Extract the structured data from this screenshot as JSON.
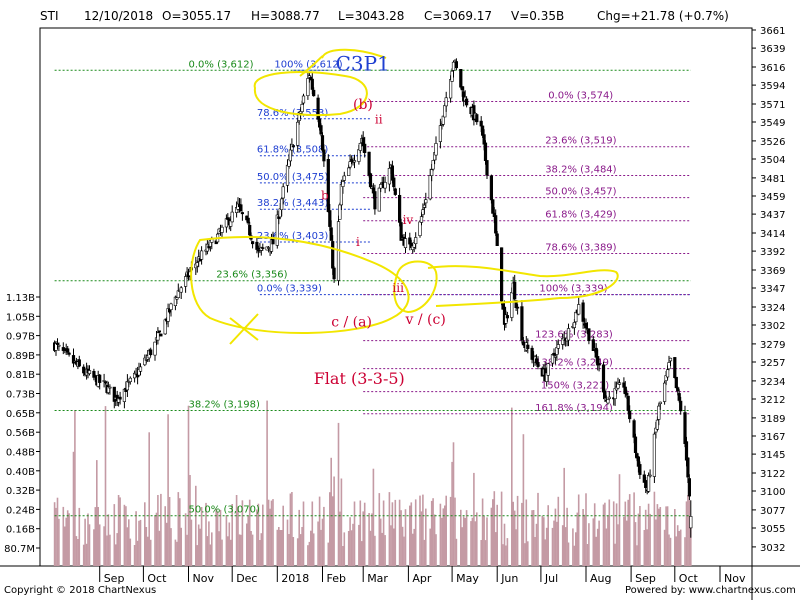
{
  "header": {
    "symbol": "STI",
    "date": "12/10/2018",
    "open": "O=3055.17",
    "high": "H=3088.77",
    "low": "L=3043.28",
    "close": "C=3069.17",
    "volume": "V=0.35B",
    "change": "Chg=+21.78 (+0.7%)"
  },
  "footer": {
    "copyright": "Copyright © 2018 ChartNexus",
    "powered": "Powered by: www.chartnexus.com"
  },
  "colors": {
    "up": "#ffffff",
    "down": "#000000",
    "volume": "#c49aa4",
    "level_green": "#1a8a1a",
    "level_blue": "#1f3fd1",
    "level_purple": "#8a1a8a",
    "annotation_red": "#cc0033",
    "highlight_yellow": "#f2e600",
    "axis_tick": "#000000"
  },
  "chart_data": {
    "type": "candlestick",
    "title": "",
    "y_price_range": [
      3010,
      3661
    ],
    "y_price_ticks": [
      "3661",
      "3639",
      "3616",
      "3594",
      "3571",
      "3549",
      "3526",
      "3504",
      "3481",
      "3459",
      "3437",
      "3414",
      "3392",
      "3369",
      "3347",
      "3324",
      "3302",
      "3279",
      "3257",
      "3234",
      "3212",
      "3189",
      "3167",
      "3145",
      "3122",
      "3100",
      "3077",
      "3055",
      "3032"
    ],
    "y_volume_ticks": [
      "1.13B",
      "1.05B",
      "0.97B",
      "0.89B",
      "0.81B",
      "0.73B",
      "0.65B",
      "0.56B",
      "0.48B",
      "0.40B",
      "0.32B",
      "0.24B",
      "0.16B",
      "80.7M"
    ],
    "x_month_labels": [
      "Sep",
      "Oct",
      "Nov",
      "Dec",
      "2018",
      "Feb",
      "Mar",
      "Apr",
      "May",
      "Jun",
      "Jul",
      "Aug",
      "Sep",
      "Oct",
      "Nov"
    ],
    "price_anchors": [
      [
        "2017-08-01",
        3278
      ],
      [
        "2017-08-21",
        3245
      ],
      [
        "2017-09-05",
        3228
      ],
      [
        "2017-09-12",
        3212
      ],
      [
        "2017-09-26",
        3240
      ],
      [
        "2017-10-10",
        3282
      ],
      [
        "2017-10-24",
        3340
      ],
      [
        "2017-11-07",
        3380
      ],
      [
        "2017-11-21",
        3410
      ],
      [
        "2017-12-05",
        3445
      ],
      [
        "2017-12-12",
        3420
      ],
      [
        "2017-12-19",
        3390
      ],
      [
        "2017-12-29",
        3402
      ],
      [
        "2018-01-10",
        3510
      ],
      [
        "2018-01-23",
        3608
      ],
      [
        "2018-01-31",
        3540
      ],
      [
        "2018-02-06",
        3420
      ],
      [
        "2018-02-09",
        3355
      ],
      [
        "2018-02-14",
        3470
      ],
      [
        "2018-02-28",
        3530
      ],
      [
        "2018-03-09",
        3450
      ],
      [
        "2018-03-20",
        3495
      ],
      [
        "2018-03-27",
        3410
      ],
      [
        "2018-04-02",
        3395
      ],
      [
        "2018-04-09",
        3425
      ],
      [
        "2018-04-19",
        3508
      ],
      [
        "2018-05-02",
        3625
      ],
      [
        "2018-05-09",
        3580
      ],
      [
        "2018-05-21",
        3540
      ],
      [
        "2018-05-30",
        3430
      ],
      [
        "2018-06-06",
        3300
      ],
      [
        "2018-06-12",
        3350
      ],
      [
        "2018-06-19",
        3280
      ],
      [
        "2018-06-27",
        3258
      ],
      [
        "2018-07-04",
        3240
      ],
      [
        "2018-07-11",
        3270
      ],
      [
        "2018-07-19",
        3290
      ],
      [
        "2018-07-27",
        3325
      ],
      [
        "2018-08-03",
        3290
      ],
      [
        "2018-08-10",
        3250
      ],
      [
        "2018-08-15",
        3210
      ],
      [
        "2018-08-27",
        3230
      ],
      [
        "2018-09-06",
        3130
      ],
      [
        "2018-09-12",
        3100
      ],
      [
        "2018-09-20",
        3200
      ],
      [
        "2018-09-28",
        3258
      ],
      [
        "2018-10-05",
        3200
      ],
      [
        "2018-10-10",
        3122
      ],
      [
        "2018-10-12",
        3069
      ]
    ],
    "levels": [
      {
        "label": "0.0%  (3,612)",
        "value": 3612,
        "color": "green",
        "x_start": "2017-08-01",
        "x_end": "2018-10-12",
        "label_at": "2017-11-01"
      },
      {
        "label": "100%  (3,612)",
        "value": 3612,
        "color": "blue",
        "x_start": "2018-01-12",
        "x_end": "2018-02-06",
        "label_at": "2017-12-30"
      },
      {
        "label": "78.6%  (3,553)",
        "value": 3553,
        "color": "blue",
        "x_start": "2017-12-20",
        "x_end": "2018-03-06",
        "label_at": "2017-12-18"
      },
      {
        "label": "61.8%  (3,508)",
        "value": 3508,
        "color": "blue",
        "x_start": "2017-12-20",
        "x_end": "2018-03-06",
        "label_at": "2017-12-18"
      },
      {
        "label": "50.0%  (3,475)",
        "value": 3475,
        "color": "blue",
        "x_start": "2017-12-20",
        "x_end": "2018-03-06",
        "label_at": "2017-12-18"
      },
      {
        "label": "38.2%  (3,443)",
        "value": 3443,
        "color": "blue",
        "x_start": "2017-12-20",
        "x_end": "2018-03-06",
        "label_at": "2017-12-18"
      },
      {
        "label": "23.6%  (3,403)",
        "value": 3403,
        "color": "blue",
        "x_start": "2017-12-20",
        "x_end": "2018-03-06",
        "label_at": "2017-12-18"
      },
      {
        "label": "23.6%  (3,356)",
        "value": 3356,
        "color": "green",
        "x_start": "2017-08-01",
        "x_end": "2018-10-12",
        "label_at": "2017-11-20"
      },
      {
        "label": "0.0%  (3,339)",
        "value": 3339,
        "color": "blue",
        "x_start": "2017-12-20",
        "x_end": "2018-10-12",
        "label_at": "2017-12-18"
      },
      {
        "label": "0.0%  (3,574)",
        "value": 3574,
        "color": "purple",
        "x_start": "2018-03-01",
        "x_end": "2018-10-12",
        "label_at": "2018-07-06"
      },
      {
        "label": "23.6%  (3,519)",
        "value": 3519,
        "color": "purple",
        "x_start": "2018-03-01",
        "x_end": "2018-10-12",
        "label_at": "2018-07-04"
      },
      {
        "label": "38.2%  (3,484)",
        "value": 3484,
        "color": "purple",
        "x_start": "2018-03-01",
        "x_end": "2018-10-12",
        "label_at": "2018-07-04"
      },
      {
        "label": "50.0%  (3,457)",
        "value": 3457,
        "color": "purple",
        "x_start": "2018-03-01",
        "x_end": "2018-10-12",
        "label_at": "2018-07-04"
      },
      {
        "label": "61.8%  (3,429)",
        "value": 3429,
        "color": "purple",
        "x_start": "2018-03-01",
        "x_end": "2018-10-12",
        "label_at": "2018-07-04"
      },
      {
        "label": "78.6%  (3,389)",
        "value": 3389,
        "color": "purple",
        "x_start": "2018-03-01",
        "x_end": "2018-10-12",
        "label_at": "2018-07-04"
      },
      {
        "label": "100%  (3,339)",
        "value": 3339,
        "color": "purple",
        "x_start": "2018-03-01",
        "x_end": "2018-10-12",
        "label_at": "2018-06-30"
      },
      {
        "label": "123.6%  (3,283)",
        "value": 3283,
        "color": "purple",
        "x_start": "2018-03-01",
        "x_end": "2018-10-12",
        "label_at": "2018-06-27"
      },
      {
        "label": "138.2%  (3,249)",
        "value": 3249,
        "color": "purple",
        "x_start": "2018-03-01",
        "x_end": "2018-10-12",
        "label_at": "2018-06-27"
      },
      {
        "label": "150%  (3,221)",
        "value": 3221,
        "color": "purple",
        "x_start": "2018-03-01",
        "x_end": "2018-10-12",
        "label_at": "2018-07-01"
      },
      {
        "label": "161.8%  (3,194)",
        "value": 3194,
        "color": "purple",
        "x_start": "2018-03-01",
        "x_end": "2018-10-12",
        "label_at": "2018-06-27"
      },
      {
        "label": "38.2%  (3,198)",
        "value": 3198,
        "color": "green",
        "x_start": "2017-08-01",
        "x_end": "2018-10-12",
        "label_at": "2017-11-01"
      },
      {
        "label": "50.0%  (3,070)",
        "value": 3070,
        "color": "green",
        "x_start": "2017-08-01",
        "x_end": "2018-10-12",
        "label_at": "2017-11-01"
      }
    ],
    "annotations": [
      {
        "text": "C3P1",
        "color": "blue",
        "x": "2018-02-10",
        "y": 3612,
        "size": 20
      },
      {
        "text": "(b)",
        "color": "red",
        "x": "2018-02-22",
        "y": 3565,
        "size": 14
      },
      {
        "text": "ii",
        "color": "red",
        "x": "2018-03-09",
        "y": 3547,
        "size": 12
      },
      {
        "text": "b",
        "color": "red",
        "x": "2018-01-31",
        "y": 3455,
        "size": 12
      },
      {
        "text": "iv",
        "color": "red",
        "x": "2018-03-28",
        "y": 3425,
        "size": 12
      },
      {
        "text": "i",
        "color": "red",
        "x": "2018-02-24",
        "y": 3398,
        "size": 12
      },
      {
        "text": "iii",
        "color": "red",
        "x": "2018-03-21",
        "y": 3342,
        "size": 12
      },
      {
        "text": "c / (a)",
        "color": "red",
        "x": "2018-02-07",
        "y": 3300,
        "size": 14
      },
      {
        "text": "v / (c)",
        "color": "red",
        "x": "2018-03-30",
        "y": 3303,
        "size": 14
      },
      {
        "text": "Flat (3-3-5)",
        "color": "red",
        "x": "2018-01-26",
        "y": 3230,
        "size": 16
      }
    ]
  }
}
